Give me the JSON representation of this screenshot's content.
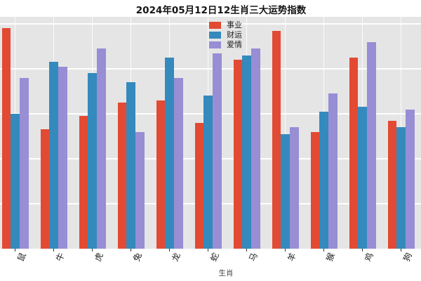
{
  "chart_data": {
    "type": "bar",
    "title": "2024年05月12日12生肖三大运势指数",
    "xlabel": "生肖",
    "ylabel": "",
    "categories": [
      "鼠",
      "牛",
      "虎",
      "兔",
      "龙",
      "蛇",
      "马",
      "羊",
      "猴",
      "鸡",
      "狗"
    ],
    "series": [
      {
        "name": "事业",
        "color": "#e24a33",
        "values": [
          98,
          53,
          59,
          65,
          66,
          56,
          84,
          97,
          52,
          85,
          57
        ]
      },
      {
        "name": "财运",
        "color": "#348abd",
        "values": [
          60,
          83,
          78,
          74,
          85,
          68,
          86,
          51,
          61,
          63,
          54
        ]
      },
      {
        "name": "爱情",
        "color": "#988ed5",
        "values": [
          76,
          81,
          89,
          52,
          76,
          87,
          89,
          54,
          69,
          92,
          62
        ]
      }
    ],
    "ylim": [
      0,
      103.1
    ],
    "y_gridlines": [
      20,
      40,
      60,
      80,
      100
    ],
    "grid": "on",
    "legend_position": "upper-center",
    "panel_background": "#e5e5e5",
    "gridline_color": "#ffffff"
  }
}
